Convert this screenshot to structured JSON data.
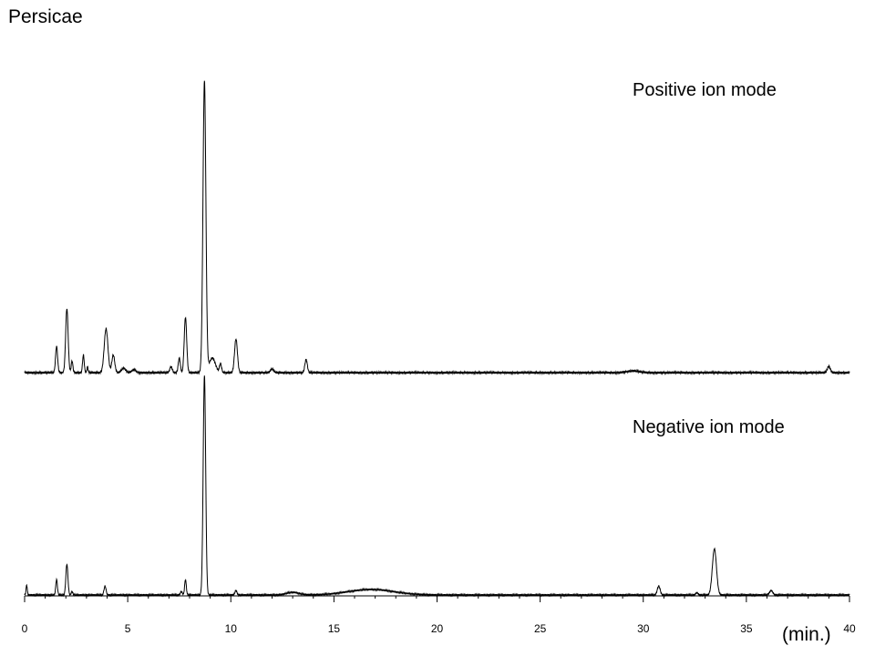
{
  "chart_data": {
    "type": "line",
    "title": "Persicae",
    "xlabel": "(min.)",
    "ylabel": "",
    "xlim": [
      0,
      40
    ],
    "x_ticks": [
      0,
      5,
      10,
      15,
      20,
      25,
      30,
      35,
      40
    ],
    "x_tick_labels": [
      "0",
      "5",
      "10",
      "15",
      "20",
      "25",
      "30",
      "35",
      "40"
    ],
    "minor_tick_step": 1,
    "grid": false,
    "legend": "none",
    "line_color": "#000000",
    "series": [
      {
        "name": "Positive ion mode",
        "relative_baseline": 0.0,
        "peaks": [
          {
            "t": 1.55,
            "h": 0.09,
            "w": 0.05
          },
          {
            "t": 2.05,
            "h": 0.22,
            "w": 0.06
          },
          {
            "t": 2.3,
            "h": 0.04,
            "w": 0.04
          },
          {
            "t": 2.85,
            "h": 0.06,
            "w": 0.04
          },
          {
            "t": 3.05,
            "h": 0.02,
            "w": 0.03
          },
          {
            "t": 3.95,
            "h": 0.15,
            "w": 0.09
          },
          {
            "t": 4.3,
            "h": 0.06,
            "w": 0.07
          },
          {
            "t": 4.8,
            "h": 0.015,
            "w": 0.1
          },
          {
            "t": 5.3,
            "h": 0.01,
            "w": 0.1
          },
          {
            "t": 7.1,
            "h": 0.02,
            "w": 0.06
          },
          {
            "t": 7.5,
            "h": 0.05,
            "w": 0.05
          },
          {
            "t": 7.8,
            "h": 0.19,
            "w": 0.06
          },
          {
            "t": 8.72,
            "h": 1.0,
            "w": 0.07
          },
          {
            "t": 9.1,
            "h": 0.05,
            "w": 0.15
          },
          {
            "t": 9.5,
            "h": 0.03,
            "w": 0.05
          },
          {
            "t": 10.25,
            "h": 0.115,
            "w": 0.07
          },
          {
            "t": 12.0,
            "h": 0.012,
            "w": 0.08
          },
          {
            "t": 13.65,
            "h": 0.045,
            "w": 0.06
          },
          {
            "t": 29.5,
            "h": 0.006,
            "w": 0.3
          },
          {
            "t": 39.0,
            "h": 0.022,
            "w": 0.07
          }
        ]
      },
      {
        "name": "Negative ion mode",
        "relative_baseline": 0.0,
        "peaks": [
          {
            "t": 0.1,
            "h": 0.045,
            "w": 0.03
          },
          {
            "t": 1.55,
            "h": 0.07,
            "w": 0.04
          },
          {
            "t": 2.05,
            "h": 0.14,
            "w": 0.05
          },
          {
            "t": 2.3,
            "h": 0.015,
            "w": 0.04
          },
          {
            "t": 3.9,
            "h": 0.04,
            "w": 0.05
          },
          {
            "t": 7.6,
            "h": 0.015,
            "w": 0.05
          },
          {
            "t": 7.8,
            "h": 0.07,
            "w": 0.04
          },
          {
            "t": 8.72,
            "h": 1.0,
            "w": 0.06
          },
          {
            "t": 10.25,
            "h": 0.02,
            "w": 0.05
          },
          {
            "t": 13.0,
            "h": 0.012,
            "w": 0.3
          },
          {
            "t": 16.8,
            "h": 0.025,
            "w": 1.1
          },
          {
            "t": 30.75,
            "h": 0.04,
            "w": 0.07
          },
          {
            "t": 32.6,
            "h": 0.01,
            "w": 0.06
          },
          {
            "t": 33.45,
            "h": 0.21,
            "w": 0.1
          },
          {
            "t": 36.2,
            "h": 0.02,
            "w": 0.08
          }
        ]
      }
    ]
  }
}
